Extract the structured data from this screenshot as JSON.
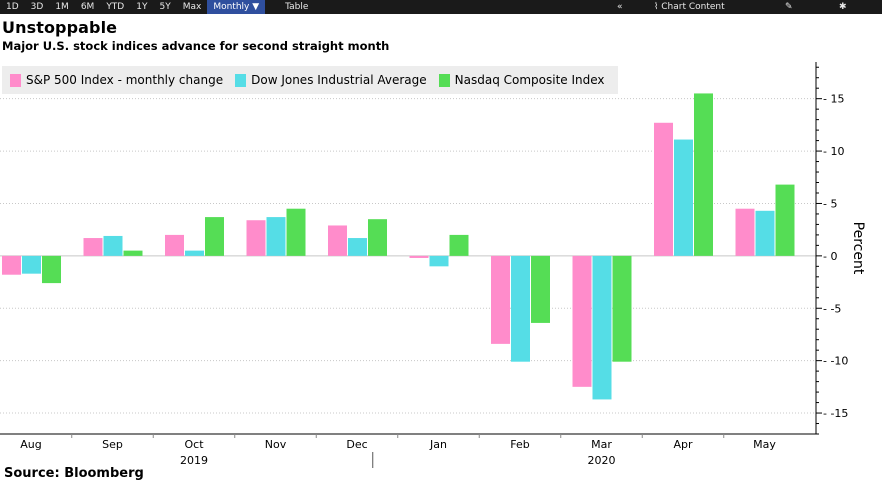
{
  "toolbar": {
    "ranges": [
      "1D",
      "3D",
      "1M",
      "6M",
      "YTD",
      "1Y",
      "5Y",
      "Max"
    ],
    "frequency": "Monthly ▼",
    "table_label": "Table",
    "collapse_glyph": "«",
    "chart_content_label": "Chart Content",
    "edit_glyph": "✎",
    "settings_glyph": "✱"
  },
  "footer": {
    "source_text": "Source: Bloomberg"
  },
  "chart_data": {
    "type": "bar",
    "title": "Unstoppable",
    "subtitle": "Major U.S. stock indices advance for second straight month",
    "categories": [
      "Aug",
      "Sep",
      "Oct",
      "Nov",
      "Dec",
      "Jan",
      "Feb",
      "Mar",
      "Apr",
      "May"
    ],
    "year_labels": [
      {
        "label": "2019",
        "from": "Aug",
        "to": "Dec"
      },
      {
        "label": "2020",
        "from": "Jan",
        "to": "May"
      }
    ],
    "series": [
      {
        "name": "S&P 500 Index - monthly change",
        "color": "#ff8ccb",
        "values": [
          -1.8,
          1.7,
          2.0,
          3.4,
          2.9,
          -0.2,
          -8.4,
          -12.5,
          12.7,
          4.5
        ]
      },
      {
        "name": "Dow Jones Industrial Average",
        "color": "#55dde6",
        "values": [
          -1.7,
          1.9,
          0.5,
          3.7,
          1.7,
          -1.0,
          -10.1,
          -13.7,
          11.1,
          4.3
        ]
      },
      {
        "name": "Nasdaq Composite Index",
        "color": "#55dd55",
        "values": [
          -2.6,
          0.5,
          3.7,
          4.5,
          3.5,
          2.0,
          -6.4,
          -10.1,
          15.5,
          6.8
        ]
      }
    ],
    "ylabel": "Percent",
    "ylim": [
      -17,
      18.5
    ],
    "yticks": [
      -15,
      -10,
      -5,
      0,
      5,
      10,
      15
    ],
    "grid": true,
    "legend_position": "top-left"
  }
}
